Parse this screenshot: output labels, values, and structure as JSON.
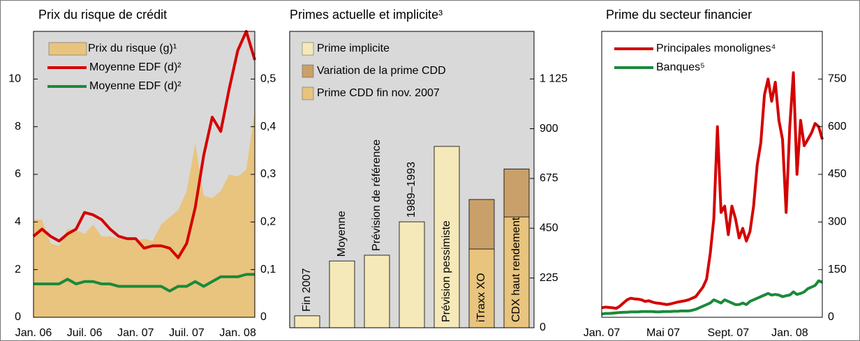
{
  "chart_data": [
    {
      "type": "line",
      "title": "Prix du risque de crédit",
      "background": "#d9d9d9",
      "legend": "upper left",
      "grid": false,
      "y_axis_side": "left",
      "categories": [
        "Jan. 06",
        null,
        null,
        null,
        null,
        null,
        "Juil. 06",
        null,
        null,
        null,
        null,
        null,
        "Jan. 07",
        null,
        null,
        null,
        null,
        null,
        "Juil. 07",
        null,
        null,
        null,
        null,
        null,
        "Jan. 08",
        null,
        null
      ],
      "ylim": [
        0,
        12
      ],
      "yticks": [
        0,
        2,
        4,
        6,
        8,
        10
      ],
      "y2lim": [
        0,
        0.6
      ],
      "y2ticks": [
        0,
        {
          "value": 0.1,
          "label": "0,1"
        },
        {
          "value": 0.2,
          "label": "0,2"
        },
        {
          "value": 0.3,
          "label": "0,3"
        },
        {
          "value": 0.4,
          "label": "0,4"
        },
        {
          "value": 0.5,
          "label": "0,5"
        }
      ],
      "series": [
        {
          "name": "Prix du risque (g)¹",
          "type": "area",
          "color": "#e8c47e",
          "values": [
            4.1,
            4.1,
            3.1,
            3.0,
            3.7,
            3.65,
            3.5,
            3.9,
            3.4,
            3.4,
            3.3,
            3.3,
            3.2,
            3.3,
            3.2,
            3.9,
            4.2,
            4.5,
            5.3,
            7.3,
            5.1,
            5.0,
            5.3,
            6.0,
            5.9,
            6.2,
            8.7
          ]
        },
        {
          "name": "Moyenne EDF (d)²",
          "type": "line",
          "axis": "y2",
          "color": "#d40000",
          "values": [
            0.17,
            0.185,
            0.17,
            0.16,
            0.175,
            0.185,
            0.22,
            0.215,
            0.205,
            0.185,
            0.17,
            0.165,
            0.165,
            0.145,
            0.15,
            0.15,
            0.145,
            0.125,
            0.155,
            0.23,
            0.34,
            0.42,
            0.39,
            0.48,
            0.56,
            0.6,
            0.54
          ]
        },
        {
          "name": "Moyenne EDF (d)²",
          "type": "line",
          "axis": "y2",
          "color": "#1a8a3a",
          "values": [
            0.07,
            0.07,
            0.07,
            0.07,
            0.08,
            0.07,
            0.075,
            0.075,
            0.07,
            0.07,
            0.065,
            0.065,
            0.065,
            0.065,
            0.065,
            0.065,
            0.055,
            0.065,
            0.065,
            0.075,
            0.065,
            0.075,
            0.085,
            0.085,
            0.085,
            0.09,
            0.09
          ]
        }
      ]
    },
    {
      "type": "bar",
      "stacked": true,
      "title": "Primes actuelle et implicite³",
      "background": "#d9d9d9",
      "legend": "upper left",
      "grid": false,
      "y_axis_side": "right",
      "categories": [
        "Fin 2007",
        "Moyenne",
        "Prévision de référence",
        "1989–1993",
        "Prévision pessimiste",
        "iTraxx XO",
        "CDX haut rendement"
      ],
      "ylim": [
        0,
        1340
      ],
      "yticks": [
        0,
        225,
        450,
        675,
        900,
        {
          "value": 1125,
          "label": "1 125"
        }
      ],
      "series": [
        {
          "name": "Prime implicite",
          "color": "#f5e9b9",
          "values": [
            54,
            302,
            328,
            479,
            820,
            null,
            null
          ]
        },
        {
          "name": "Variation de la prime CDD",
          "color": "#c9a06a",
          "values": [
            null,
            null,
            null,
            null,
            null,
            224,
            217
          ]
        },
        {
          "name": "Prime CDD fin nov. 2007",
          "color": "#e8c47e",
          "values": [
            null,
            null,
            null,
            null,
            null,
            356,
            501
          ]
        }
      ]
    },
    {
      "type": "line",
      "title": "Prime du secteur financier",
      "background": "#ffffff",
      "legend": "upper left",
      "grid": false,
      "y_axis_side": "right",
      "categories": [
        "Jan. 07",
        null,
        null,
        null,
        null,
        null,
        null,
        null,
        null,
        null,
        null,
        null,
        null,
        null,
        null,
        null,
        null,
        "Mai 07",
        null,
        null,
        null,
        null,
        null,
        null,
        null,
        null,
        null,
        null,
        null,
        null,
        null,
        null,
        null,
        null,
        null,
        "Sept. 07",
        null,
        null,
        null,
        null,
        null,
        null,
        null,
        null,
        null,
        null,
        null,
        null,
        null,
        null,
        null,
        null,
        "Jan. 08",
        null,
        null,
        null,
        null,
        null,
        null,
        null,
        null,
        null
      ],
      "ylim": [
        0,
        900
      ],
      "yticks": [
        0,
        150,
        300,
        450,
        600,
        750
      ],
      "series": [
        {
          "name": "Principales  monolignes⁴",
          "type": "line",
          "color": "#d40000",
          "values": [
            30,
            32,
            31,
            30,
            28,
            35,
            45,
            55,
            60,
            58,
            57,
            55,
            50,
            52,
            48,
            45,
            44,
            42,
            40,
            42,
            45,
            48,
            50,
            52,
            55,
            60,
            65,
            80,
            95,
            120,
            200,
            310,
            600,
            330,
            350,
            260,
            350,
            310,
            250,
            280,
            240,
            270,
            350,
            480,
            550,
            700,
            750,
            680,
            740,
            620,
            560,
            330,
            600,
            770,
            450,
            620,
            540,
            560,
            580,
            610,
            600,
            560
          ]
        },
        {
          "name": "Banques⁵",
          "type": "line",
          "color": "#1a8a3a",
          "values": [
            10,
            12,
            12,
            13,
            14,
            15,
            16,
            16,
            17,
            17,
            17,
            18,
            18,
            18,
            18,
            17,
            17,
            18,
            18,
            18,
            19,
            19,
            20,
            20,
            20,
            22,
            25,
            30,
            35,
            40,
            45,
            55,
            50,
            45,
            55,
            50,
            45,
            40,
            40,
            45,
            40,
            50,
            55,
            60,
            65,
            70,
            75,
            70,
            72,
            70,
            65,
            68,
            70,
            80,
            72,
            75,
            80,
            90,
            95,
            100,
            115,
            110
          ]
        }
      ]
    }
  ]
}
